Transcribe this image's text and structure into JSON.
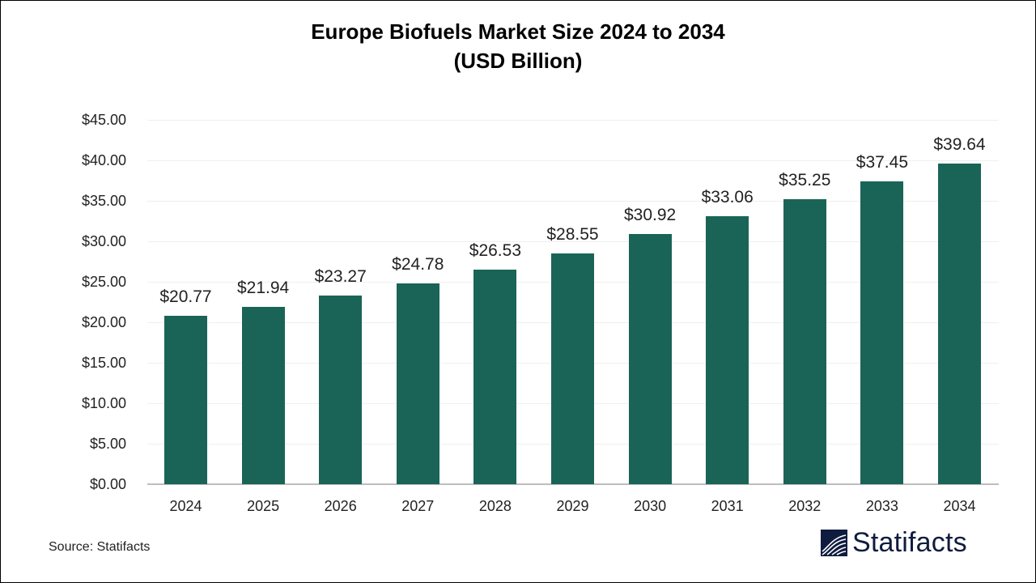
{
  "title": {
    "line1": "Europe Biofuels Market Size 2024 to 2034",
    "line2": "(USD Billion)"
  },
  "y_axis": {
    "ticks": [
      "$0.00",
      "$5.00",
      "$10.00",
      "$15.00",
      "$20.00",
      "$25.00",
      "$30.00",
      "$35.00",
      "$40.00",
      "$45.00"
    ]
  },
  "bars": [
    {
      "year": "2024",
      "label": "$20.77",
      "value": 20.77
    },
    {
      "year": "2025",
      "label": "$21.94",
      "value": 21.94
    },
    {
      "year": "2026",
      "label": "$23.27",
      "value": 23.27
    },
    {
      "year": "2027",
      "label": "$24.78",
      "value": 24.78
    },
    {
      "year": "2028",
      "label": "$26.53",
      "value": 26.53
    },
    {
      "year": "2029",
      "label": "$28.55",
      "value": 28.55
    },
    {
      "year": "2030",
      "label": "$30.92",
      "value": 30.92
    },
    {
      "year": "2031",
      "label": "$33.06",
      "value": 33.06
    },
    {
      "year": "2032",
      "label": "$35.25",
      "value": 35.25
    },
    {
      "year": "2033",
      "label": "$37.45",
      "value": 37.45
    },
    {
      "year": "2034",
      "label": "$39.64",
      "value": 39.64
    }
  ],
  "footer": {
    "source": "Source: Statifacts",
    "logo_text": "Statifacts"
  },
  "colors": {
    "bar": "#1a6457",
    "logo": "#0f1c3f"
  },
  "chart_data": {
    "type": "bar",
    "title": "Europe Biofuels Market Size 2024 to 2034 (USD Billion)",
    "categories": [
      "2024",
      "2025",
      "2026",
      "2027",
      "2028",
      "2029",
      "2030",
      "2031",
      "2032",
      "2033",
      "2034"
    ],
    "values": [
      20.77,
      21.94,
      23.27,
      24.78,
      26.53,
      28.55,
      30.92,
      33.06,
      35.25,
      37.45,
      39.64
    ],
    "xlabel": "",
    "ylabel": "",
    "ylim": [
      0,
      45
    ],
    "yticks": [
      0,
      5,
      10,
      15,
      20,
      25,
      30,
      35,
      40,
      45
    ],
    "ytick_format": "$0.00",
    "data_labels": true,
    "grid": true,
    "legend": null,
    "source": "Source: Statifacts"
  }
}
